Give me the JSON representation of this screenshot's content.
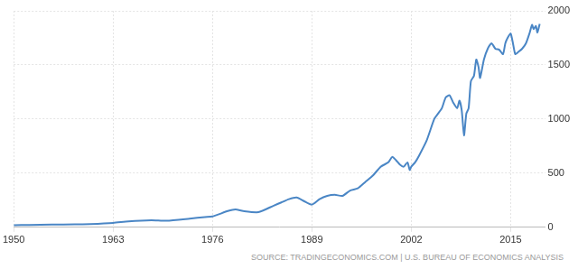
{
  "chart_data": {
    "type": "line",
    "caption": "SOURCE: TRADINGECONOMICS.COM | U.S. BUREAU OF ECONOMICS ANALYSIS",
    "x": [
      1950,
      1952,
      1955,
      1958,
      1960,
      1963,
      1965,
      1968,
      1970,
      1973,
      1975,
      1976,
      1978,
      1979,
      1980,
      1982,
      1984,
      1985,
      1986,
      1987,
      1988,
      1989,
      1990,
      1991,
      1992,
      1993,
      1994,
      1995,
      1996,
      1997,
      1998,
      1999,
      1999.5,
      2000,
      2000.5,
      2001,
      2001.5,
      2001.8,
      2002,
      2002.5,
      2003,
      2004,
      2005,
      2005.5,
      2006,
      2006.5,
      2007,
      2007.5,
      2008,
      2008.3,
      2008.6,
      2008.9,
      2009.2,
      2009.5,
      2009.8,
      2010.2,
      2010.5,
      2010.8,
      2011,
      2011.5,
      2012,
      2012.5,
      2013,
      2013.5,
      2014,
      2014.3,
      2014.6,
      2015,
      2015.3,
      2015.6,
      2016,
      2016.5,
      2017,
      2017.5,
      2017.8,
      2018,
      2018.3,
      2018.5,
      2018.8
    ],
    "values": [
      20,
      22,
      25,
      27,
      30,
      40,
      55,
      65,
      60,
      80,
      95,
      100,
      150,
      165,
      150,
      140,
      200,
      230,
      260,
      275,
      240,
      210,
      260,
      290,
      300,
      290,
      340,
      360,
      420,
      480,
      560,
      600,
      650,
      620,
      580,
      560,
      600,
      530,
      560,
      600,
      660,
      800,
      1000,
      1050,
      1100,
      1200,
      1220,
      1150,
      1100,
      1170,
      1080,
      850,
      1050,
      1100,
      1350,
      1400,
      1550,
      1480,
      1380,
      1550,
      1650,
      1700,
      1650,
      1640,
      1600,
      1700,
      1750,
      1790,
      1700,
      1600,
      1620,
      1650,
      1700,
      1800,
      1870,
      1830,
      1860,
      1800,
      1880
    ],
    "color": "#4a86c5",
    "xlim": [
      1950,
      2019.5
    ],
    "xticks": [
      1950,
      1963,
      1976,
      1989,
      2002,
      2015
    ],
    "ylim": [
      0,
      2000
    ],
    "yticks": [
      0,
      500,
      1000,
      1500,
      2000
    ],
    "grid": true
  }
}
